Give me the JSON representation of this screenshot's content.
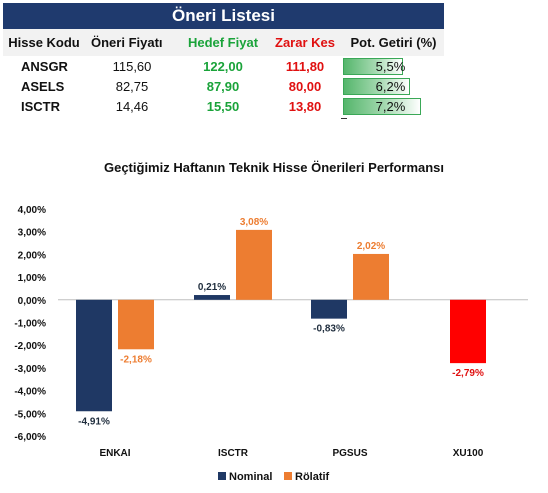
{
  "table": {
    "title": "Öneri Listesi",
    "headers": [
      "Hisse Kodu",
      "Öneri  Fiyatı",
      "Hedef Fiyat",
      "Zarar Kes",
      "Pot. Getiri (%)"
    ],
    "rows": [
      {
        "code": "ANSGR",
        "price": "115,60",
        "target": "122,00",
        "stop": "111,80",
        "return_label": "5,5%",
        "return_value": 5.5
      },
      {
        "code": "ASELS",
        "price": "82,75",
        "target": "87,90",
        "stop": "80,00",
        "return_label": "6,2%",
        "return_value": 6.2
      },
      {
        "code": "ISCTR",
        "price": "14,46",
        "target": "15,50",
        "stop": "13,80",
        "return_label": "7,2%",
        "return_value": 7.2
      }
    ],
    "colors": {
      "title_bg": "#1f3a6e",
      "target": "#1aa33a",
      "stop": "#e01010",
      "bar": "#55b66c"
    }
  },
  "chart_data": {
    "type": "bar",
    "title": "Geçtiğimiz Haftanın Teknik Hisse Önerileri Performansı",
    "categories": [
      "ENKAI",
      "ISCTR",
      "PGSUS",
      "XU100"
    ],
    "series": [
      {
        "name": "Nominal",
        "values": [
          -4.91,
          0.21,
          -0.83,
          -2.79
        ],
        "labels": [
          "-4,91%",
          "0,21%",
          "-0,83%",
          "-2,79%"
        ],
        "color": "#1f3864",
        "label_color": "#1f2d3d"
      },
      {
        "name": "Rölatif",
        "values": [
          -2.18,
          3.08,
          2.02,
          null
        ],
        "labels": [
          "-2,18%",
          "3,08%",
          "2,02%",
          ""
        ],
        "color": "#ed7d31",
        "label_color": "#ed7d31"
      }
    ],
    "special": {
      "category": "XU100",
      "color": "#ff0000",
      "label_color": "#e01010"
    },
    "yticks": [
      "4,00%",
      "3,00%",
      "2,00%",
      "1,00%",
      "0,00%",
      "-1,00%",
      "-2,00%",
      "-3,00%",
      "-4,00%",
      "-5,00%",
      "-6,00%"
    ],
    "ylim": [
      -6,
      4
    ],
    "grid": false,
    "legend": "bottom"
  }
}
